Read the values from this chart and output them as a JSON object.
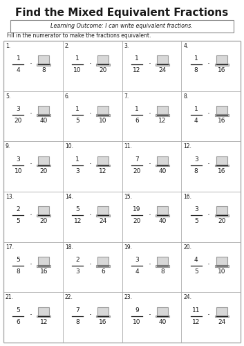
{
  "title": "Find the Mixed Equivalent Fractions",
  "learning_outcome": "Learning Outcome: I can write equivalent fractions.",
  "instruction": "Fill in the numerator to make the fractions equivalent.",
  "background_color": "#ffffff",
  "problems": [
    {
      "num": "1",
      "n1": "1",
      "d1": "4",
      "d2": "8"
    },
    {
      "num": "2",
      "n1": "1",
      "d1": "10",
      "d2": "20"
    },
    {
      "num": "3",
      "n1": "1",
      "d1": "12",
      "d2": "24"
    },
    {
      "num": "4",
      "n1": "1",
      "d1": "8",
      "d2": "16"
    },
    {
      "num": "5",
      "n1": "3",
      "d1": "20",
      "d2": "40"
    },
    {
      "num": "6",
      "n1": "1",
      "d1": "5",
      "d2": "10"
    },
    {
      "num": "7",
      "n1": "1",
      "d1": "6",
      "d2": "12"
    },
    {
      "num": "8",
      "n1": "1",
      "d1": "4",
      "d2": "16"
    },
    {
      "num": "9",
      "n1": "3",
      "d1": "10",
      "d2": "20"
    },
    {
      "num": "10",
      "n1": "1",
      "d1": "3",
      "d2": "12"
    },
    {
      "num": "11",
      "n1": "7",
      "d1": "20",
      "d2": "40"
    },
    {
      "num": "12",
      "n1": "3",
      "d1": "8",
      "d2": "16"
    },
    {
      "num": "13",
      "n1": "2",
      "d1": "5",
      "d2": "20"
    },
    {
      "num": "14",
      "n1": "5",
      "d1": "12",
      "d2": "24"
    },
    {
      "num": "15",
      "n1": "19",
      "d1": "20",
      "d2": "40"
    },
    {
      "num": "16",
      "n1": "3",
      "d1": "5",
      "d2": "20"
    },
    {
      "num": "17",
      "n1": "5",
      "d1": "8",
      "d2": "16"
    },
    {
      "num": "18",
      "n1": "2",
      "d1": "3",
      "d2": "6"
    },
    {
      "num": "19",
      "n1": "3",
      "d1": "4",
      "d2": "8"
    },
    {
      "num": "20",
      "n1": "4",
      "d1": "5",
      "d2": "10"
    },
    {
      "num": "21",
      "n1": "5",
      "d1": "6",
      "d2": "12"
    },
    {
      "num": "22",
      "n1": "7",
      "d1": "8",
      "d2": "16"
    },
    {
      "num": "23",
      "n1": "9",
      "d1": "10",
      "d2": "40"
    },
    {
      "num": "24",
      "n1": "11",
      "d1": "12",
      "d2": "24"
    }
  ],
  "grid_color": "#aaaaaa",
  "text_color": "#1a1a1a",
  "box_edge": "#999999",
  "box_face": "#d8d8d8"
}
